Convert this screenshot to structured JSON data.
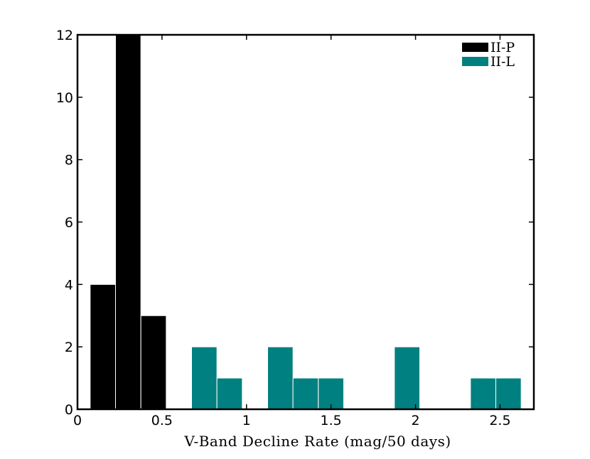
{
  "chart_data": {
    "type": "bar",
    "title": "",
    "xlabel": "V-Band Decline Rate (mag/50 days)",
    "ylabel": "",
    "xlim": [
      0,
      2.7
    ],
    "ylim": [
      0,
      12
    ],
    "bin_width": 0.15,
    "xticks": [
      "0",
      "0.5",
      "1",
      "1.5",
      "2",
      "2.5"
    ],
    "xtick_values": [
      0,
      0.5,
      1,
      1.5,
      2,
      2.5
    ],
    "yticks": [
      "0",
      "2",
      "4",
      "6",
      "8",
      "10",
      "12"
    ],
    "ytick_values": [
      0,
      2,
      4,
      6,
      8,
      10,
      12
    ],
    "legend_position": "top-right",
    "grid": false,
    "series": [
      {
        "name": "II-P",
        "color": "#000000",
        "bins": [
          {
            "x0": 0.075,
            "x1": 0.225,
            "value": 4
          },
          {
            "x0": 0.225,
            "x1": 0.375,
            "value": 12
          },
          {
            "x0": 0.375,
            "x1": 0.525,
            "value": 3
          }
        ]
      },
      {
        "name": "II-L",
        "color": "#008080",
        "bins": [
          {
            "x0": 0.675,
            "x1": 0.825,
            "value": 2
          },
          {
            "x0": 0.825,
            "x1": 0.975,
            "value": 1
          },
          {
            "x0": 1.125,
            "x1": 1.275,
            "value": 2
          },
          {
            "x0": 1.275,
            "x1": 1.425,
            "value": 1
          },
          {
            "x0": 1.425,
            "x1": 1.575,
            "value": 1
          },
          {
            "x0": 1.875,
            "x1": 2.025,
            "value": 2
          },
          {
            "x0": 2.325,
            "x1": 2.475,
            "value": 1
          },
          {
            "x0": 2.475,
            "x1": 2.625,
            "value": 1
          }
        ]
      }
    ]
  }
}
